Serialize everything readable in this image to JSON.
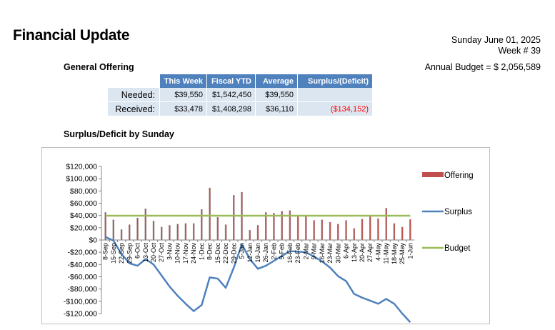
{
  "header": {
    "title": "Financial Update",
    "date": "Sunday June 01, 2025",
    "week": "Week # 39",
    "annual_budget": "Annual Budget = $ 2,056,589"
  },
  "general_offering": {
    "heading": "General Offering",
    "columns": [
      "This Week",
      "Fiscal YTD",
      "Average",
      "Surplus/(Deficit)"
    ],
    "rows": [
      {
        "label": "Needed:",
        "this_week": "$39,550",
        "fiscal_ytd": "$1,542,450",
        "average": "$39,550",
        "surplus": ""
      },
      {
        "label": "Received:",
        "this_week": "$33,478",
        "fiscal_ytd": "$1,408,298",
        "average": "$36,110",
        "surplus": "($134,152)"
      }
    ]
  },
  "chart_heading": "Surplus/Deficit by Sunday",
  "colors": {
    "offering": "#c0504d",
    "surplus": "#4f81bd",
    "budget": "#9bbb59",
    "header_fill": "#4f81bd",
    "cell_fill": "#dce6f1",
    "negative": "#ff0000"
  },
  "chart_data": {
    "type": "bar",
    "categories": [
      "8-Sep",
      "15-Sep",
      "22-Sep",
      "29-Sep",
      "6-Oct",
      "13-Oct",
      "20-Oct",
      "27-Oct",
      "3-Nov",
      "10-Nov",
      "17-Nov",
      "24-Nov",
      "1-Dec",
      "8-Dec",
      "15-Dec",
      "22-Dec",
      "29-Dec",
      "5-Jan",
      "12-Jan",
      "19-Jan",
      "26-Jan",
      "2-Feb",
      "9-Feb",
      "16-Feb",
      "23-Feb",
      "2-Mar",
      "9-Mar",
      "16-Mar",
      "23-Mar",
      "30-Mar",
      "6-Apr",
      "13-Apr",
      "20-Apr",
      "27-Apr",
      "4-May",
      "11-May",
      "18-May",
      "25-May",
      "1-Jun"
    ],
    "y_tick_labels": [
      "$120,000",
      "$100,000",
      "$80,000",
      "$60,000",
      "$40,000",
      "$20,000",
      "$0",
      "-$20,000",
      "-$40,000",
      "-$60,000",
      "-$80,000",
      "-$100,000",
      "-$120,000"
    ],
    "ylim": [
      -120000,
      120000
    ],
    "series": [
      {
        "name": "Offering",
        "type": "bar",
        "values": [
          45000,
          33000,
          17000,
          25000,
          36000,
          51000,
          31000,
          21000,
          24000,
          26000,
          27000,
          27000,
          50000,
          85000,
          37000,
          25000,
          73000,
          78000,
          16000,
          24000,
          45000,
          44000,
          47000,
          48000,
          40000,
          40000,
          32000,
          33000,
          29000,
          26000,
          32000,
          19000,
          34000,
          39000,
          35000,
          52000,
          27000,
          21000,
          33478
        ]
      },
      {
        "name": "Surplus",
        "type": "line",
        "values": [
          5000,
          -1000,
          -23000,
          -38000,
          -42000,
          -31000,
          -40000,
          -58000,
          -76000,
          -91000,
          -104000,
          -116000,
          -106000,
          -61000,
          -63000,
          -78000,
          -45000,
          -7000,
          -31000,
          -47000,
          -42000,
          -34000,
          -26000,
          -18000,
          -19000,
          -20000,
          -27000,
          -35000,
          -45000,
          -59000,
          -67000,
          -88000,
          -94000,
          -99000,
          -104000,
          -96000,
          -104000,
          -120000,
          -134152
        ]
      },
      {
        "name": "Budget",
        "type": "line",
        "values": [
          39550,
          39550,
          39550,
          39550,
          39550,
          39550,
          39550,
          39550,
          39550,
          39550,
          39550,
          39550,
          39550,
          39550,
          39550,
          39550,
          39550,
          39550,
          39550,
          39550,
          39550,
          39550,
          39550,
          39550,
          39550,
          39550,
          39550,
          39550,
          39550,
          39550,
          39550,
          39550,
          39550,
          39550,
          39550,
          39550,
          39550,
          39550,
          39550
        ]
      }
    ],
    "legend_position": "right",
    "grid": false
  }
}
